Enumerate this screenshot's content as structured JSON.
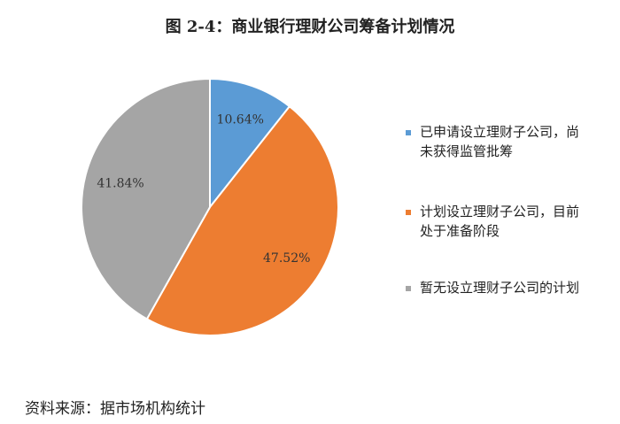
{
  "chart_data": {
    "type": "pie",
    "title": "图 2-4：商业银行理财公司筹备计划情况",
    "categories": [
      "已申请设立理财子公司，尚未获得监管批筹",
      "计划设立理财子公司，目前处于准备阶段",
      "暂无设立理财子公司的计划"
    ],
    "values": [
      10.64,
      47.52,
      41.84
    ],
    "value_labels": [
      "10.64%",
      "47.52%",
      "41.84%"
    ],
    "colors": [
      "#5b9bd5",
      "#ed7d31",
      "#a5a5a5"
    ],
    "legend": "right",
    "source": "资料来源：据市场机构统计"
  }
}
